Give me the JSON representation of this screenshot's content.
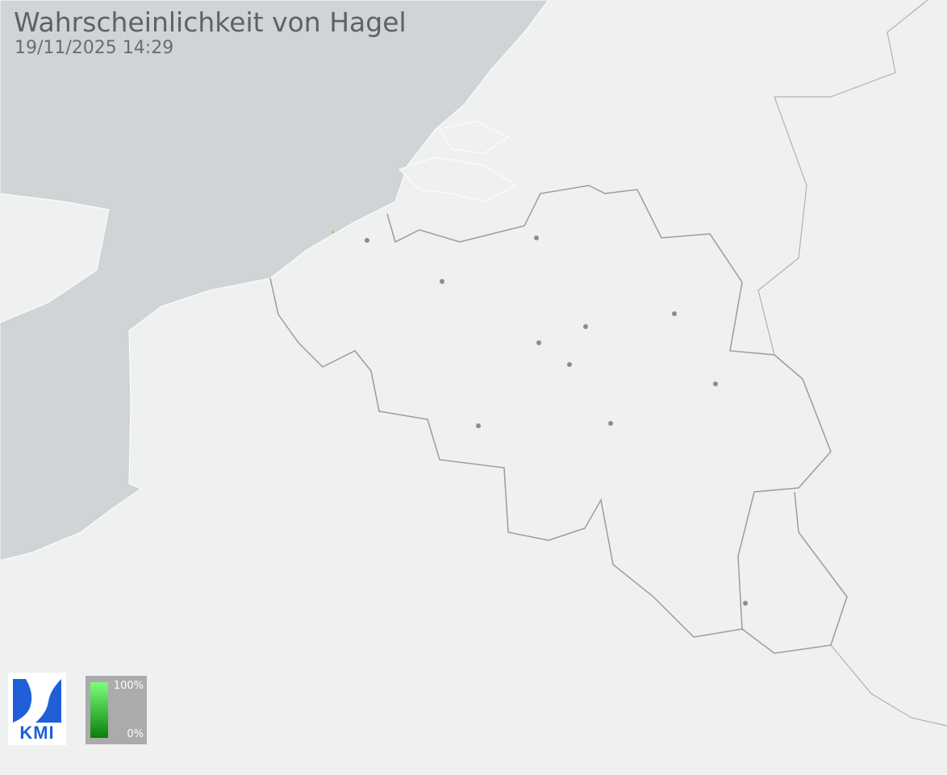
{
  "header": {
    "title": "Wahrscheinlichkeit von Hagel",
    "timestamp": "19/11/2025 14:29"
  },
  "legend": {
    "max_label": "100%",
    "min_label": "0%",
    "color_max": "#7cff7c",
    "color_min": "#0a7f0a"
  },
  "logo": {
    "text": "KMI",
    "color": "#1f5fd8"
  },
  "colors": {
    "land": "#eff0f0",
    "sea": "#d1d4d6",
    "border": "#9a9c9e",
    "city": "#8a8c8e"
  }
}
